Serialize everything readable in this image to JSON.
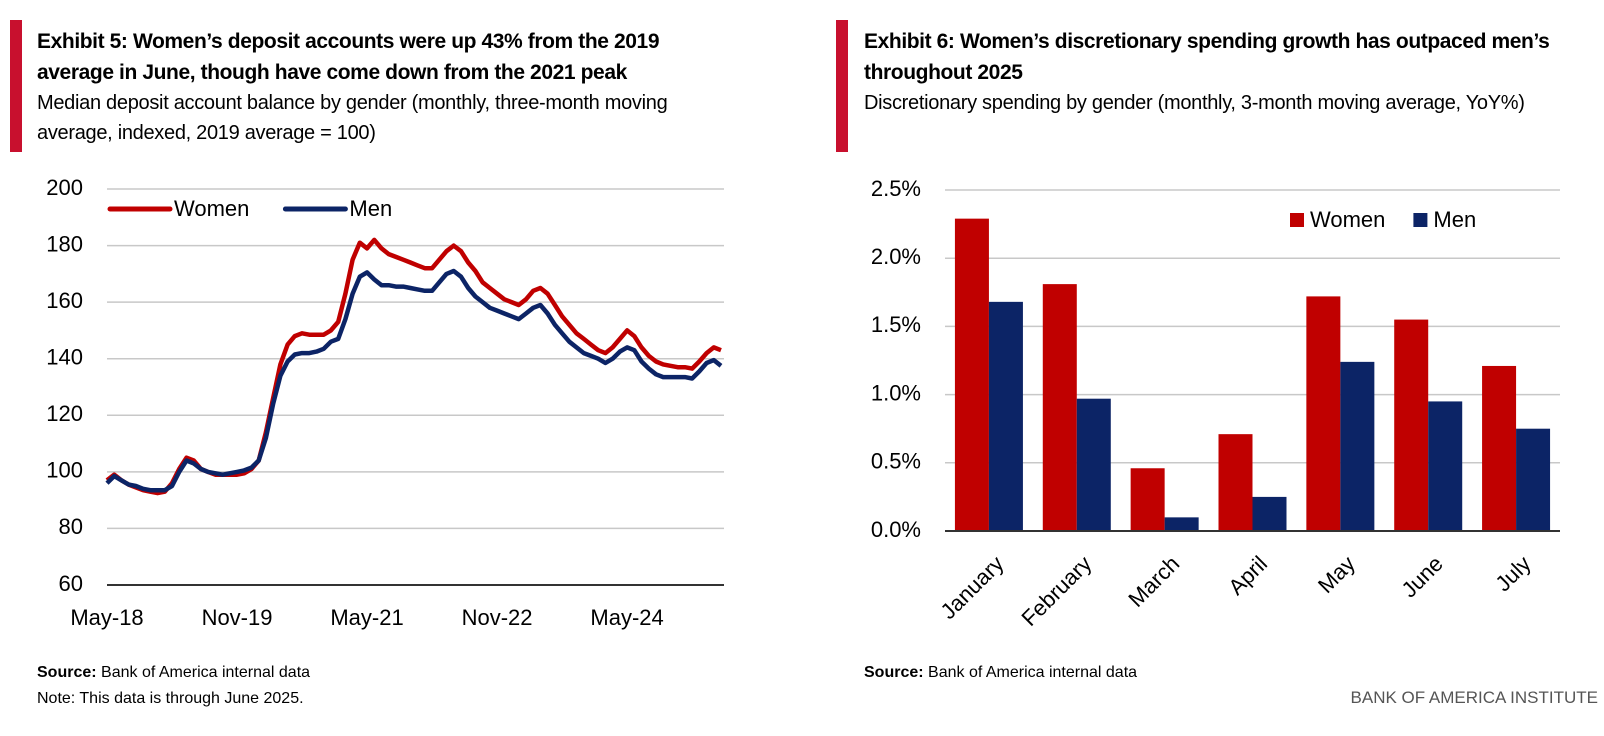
{
  "chart_data": [
    {
      "type": "line",
      "title": "Exhibit 5: Women’s deposit accounts were up 43% from the 2019 average in June, though have come down from the 2021 peak",
      "subtitle": "Median deposit account balance by gender (monthly, three-month moving average, indexed, 2019 average = 100)",
      "categories": [
        "May-18",
        null,
        null,
        null,
        null,
        null,
        null,
        null,
        null,
        null,
        null,
        null,
        null,
        null,
        null,
        null,
        null,
        null,
        "Nov-19",
        null,
        null,
        null,
        null,
        null,
        null,
        null,
        null,
        null,
        null,
        null,
        null,
        null,
        null,
        null,
        null,
        null,
        "May-21",
        null,
        null,
        null,
        null,
        null,
        null,
        null,
        null,
        null,
        null,
        null,
        null,
        null,
        null,
        null,
        null,
        null,
        "Nov-22",
        null,
        null,
        null,
        null,
        null,
        null,
        null,
        null,
        null,
        null,
        null,
        null,
        null,
        null,
        null,
        null,
        null,
        "May-24",
        null,
        null,
        null,
        null,
        null,
        null,
        null,
        null,
        null,
        null,
        null,
        null,
        null
      ],
      "series": [
        {
          "name": "Women",
          "color": "#c00000",
          "values": [
            97,
            99,
            97,
            95.5,
            94.5,
            93.5,
            93,
            92.5,
            93,
            96,
            101,
            105,
            104,
            101,
            100,
            99,
            99,
            99,
            99,
            99.5,
            101,
            104,
            114,
            126,
            138,
            145,
            148,
            149,
            148.5,
            148.5,
            148.5,
            150,
            153,
            163,
            175,
            181,
            179,
            182,
            179,
            177,
            176,
            175,
            174,
            173,
            172,
            172,
            175,
            178,
            180,
            178,
            174,
            171,
            167,
            165,
            163,
            161,
            160,
            159,
            161,
            164,
            165,
            163,
            159,
            155,
            152,
            149,
            147,
            145,
            143,
            142,
            144,
            147,
            150,
            148,
            144,
            141,
            139,
            138,
            137.5,
            137,
            137,
            136.5,
            139,
            142,
            144,
            143
          ]
        },
        {
          "name": "Men",
          "color": "#0c2466",
          "values": [
            96,
            98.5,
            97,
            95.5,
            95,
            94,
            93.5,
            93.5,
            93.5,
            95,
            100,
            104,
            103,
            101,
            100,
            99.5,
            99,
            99.5,
            100,
            100.5,
            101.5,
            104,
            112,
            124,
            134,
            139,
            141.5,
            142,
            142,
            142.5,
            143.5,
            146,
            147,
            154,
            163,
            169,
            170.5,
            168,
            166,
            166,
            165.5,
            165.5,
            165,
            164.5,
            164,
            164,
            167,
            170,
            171,
            169,
            165,
            162,
            160,
            158,
            157,
            156,
            155,
            154,
            156,
            158,
            159,
            156,
            152,
            149,
            146,
            144,
            142,
            141,
            140,
            138.5,
            140,
            142.5,
            144,
            143,
            139,
            136.5,
            134.5,
            133.5,
            133.5,
            133.5,
            133.5,
            133,
            135.5,
            138.5,
            139.5,
            137.5
          ]
        }
      ],
      "ylim": [
        60,
        200
      ],
      "yticks": [
        60,
        80,
        100,
        120,
        140,
        160,
        180,
        200
      ],
      "grid": true,
      "legend": "upper left",
      "source_label": "Source:",
      "source": "Bank of America internal data",
      "note": "Note: This data is through June 2025."
    },
    {
      "type": "bar",
      "title": "Exhibit 6: Women’s discretionary spending growth has outpaced men’s throughout 2025",
      "subtitle": "Discretionary spending by gender (monthly, 3-month moving average, YoY%)",
      "categories": [
        "January",
        "February",
        "March",
        "April",
        "May",
        "June",
        "July"
      ],
      "series": [
        {
          "name": "Women",
          "color": "#c00000",
          "values": [
            2.29,
            1.81,
            0.46,
            0.71,
            1.72,
            1.55,
            1.21
          ]
        },
        {
          "name": "Men",
          "color": "#0c2466",
          "values": [
            1.68,
            0.97,
            0.1,
            0.25,
            1.24,
            0.95,
            0.75
          ]
        }
      ],
      "ylim": [
        0,
        2.5
      ],
      "yticks": [
        {
          "value": 0,
          "label": "0.0%"
        },
        {
          "value": 0.5,
          "label": "0.5%"
        },
        {
          "value": 1,
          "label": "1.0%"
        },
        {
          "value": 1.5,
          "label": "1.5%"
        },
        {
          "value": 2,
          "label": "2.0%"
        },
        {
          "value": 2.5,
          "label": "2.5%"
        }
      ],
      "grid": true,
      "legend": "upper right",
      "source_label": "Source:",
      "source": "Bank of America internal data"
    }
  ],
  "footer": "BANK OF AMERICA INSTITUTE"
}
